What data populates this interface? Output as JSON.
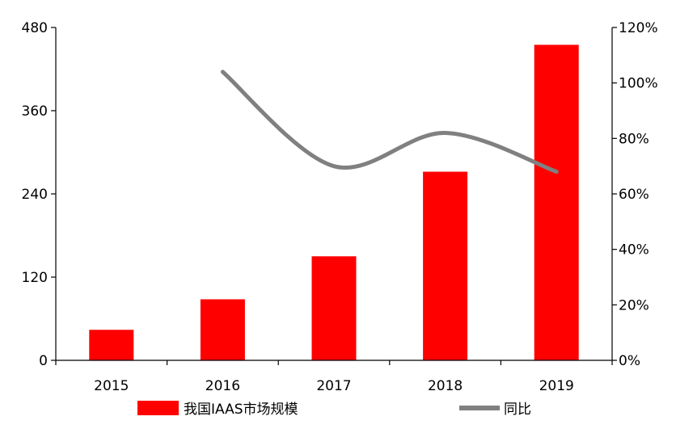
{
  "chart_data": {
    "type": "bar",
    "categories": [
      "2015",
      "2016",
      "2017",
      "2018",
      "2019"
    ],
    "series": [
      {
        "name": "我国IAAS市场规模",
        "type": "bar",
        "axis": "left",
        "color": "#ff0000",
        "values": [
          44,
          88,
          150,
          272,
          455
        ]
      },
      {
        "name": "同比",
        "type": "line",
        "axis": "right",
        "color": "#808080",
        "values": [
          null,
          1.04,
          0.7,
          0.82,
          0.68
        ]
      }
    ],
    "left_axis": {
      "min": 0,
      "max": 480,
      "ticks": [
        "0",
        "120",
        "240",
        "360",
        "480"
      ]
    },
    "right_axis": {
      "min": 0,
      "max": 1.2,
      "ticks": [
        "0%",
        "20%",
        "40%",
        "60%",
        "80%",
        "100%",
        "120%"
      ]
    },
    "title": "",
    "xlabel": "",
    "ylabel": "",
    "grid": false,
    "legend_position": "bottom"
  }
}
